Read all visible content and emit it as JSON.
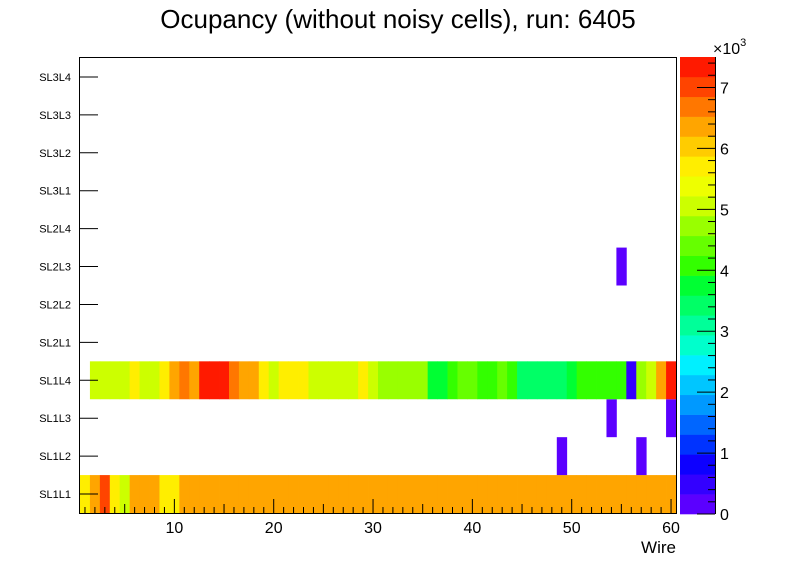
{
  "chart_data": {
    "type": "heatmap",
    "title": "Ocupancy (without noisy cells), run: 6405",
    "xlabel": "Wire",
    "ylabel": "",
    "xlim": [
      0.5,
      60.5
    ],
    "x_ticks": [
      10,
      20,
      30,
      40,
      50,
      60
    ],
    "y_categories": [
      "SL1L1",
      "SL1L2",
      "SL1L3",
      "SL1L4",
      "SL2L1",
      "SL2L2",
      "SL2L3",
      "SL2L4",
      "SL3L1",
      "SL3L2",
      "SL3L3",
      "SL3L4"
    ],
    "z_range": [
      0,
      7500
    ],
    "colorbar_label": "×10",
    "colorbar_exponent": "3",
    "colorbar_ticks": [
      {
        "value": 0,
        "label": "0"
      },
      {
        "value": 1000,
        "label": "1"
      },
      {
        "value": 2000,
        "label": "2"
      },
      {
        "value": 3000,
        "label": "3"
      },
      {
        "value": 4000,
        "label": "4"
      },
      {
        "value": 5000,
        "label": "5"
      },
      {
        "value": 6000,
        "label": "6"
      },
      {
        "value": 7000,
        "label": "7"
      }
    ],
    "palette": [
      "#5b00ff",
      "#3300ff",
      "#0d00ff",
      "#0033ff",
      "#0066ff",
      "#0099ff",
      "#00c6ff",
      "#00f0ff",
      "#00ffcc",
      "#00ff99",
      "#00ff66",
      "#00ff33",
      "#33ff00",
      "#66ff00",
      "#99ff00",
      "#ccff00",
      "#eeff00",
      "#ffee00",
      "#ffcc00",
      "#ffa500",
      "#ff7700",
      "#ff4400",
      "#ff1a00"
    ],
    "rows": [
      {
        "layer": "SL1L1",
        "values": [
          5700,
          6500,
          6900,
          5700,
          5100,
          6300,
          6300,
          6300,
          5600,
          5600,
          6500,
          6500,
          6500,
          6500,
          6500,
          6500,
          6500,
          6500,
          6500,
          6500,
          6500,
          6500,
          6500,
          6500,
          6500,
          6500,
          6500,
          6500,
          6500,
          6500,
          6500,
          6500,
          6500,
          6500,
          6500,
          6500,
          6500,
          6500,
          6500,
          6500,
          6500,
          6500,
          6500,
          6500,
          6500,
          6500,
          6500,
          6500,
          6500,
          6500,
          6500,
          6500,
          6500,
          6500,
          6500,
          6500,
          6500,
          6500,
          6500,
          6500
        ]
      },
      {
        "layer": "SL1L2",
        "values": [
          0,
          0,
          0,
          0,
          0,
          0,
          0,
          0,
          0,
          0,
          0,
          0,
          0,
          0,
          0,
          0,
          0,
          0,
          0,
          0,
          0,
          0,
          0,
          0,
          0,
          0,
          0,
          0,
          0,
          0,
          0,
          0,
          0,
          0,
          0,
          0,
          0,
          0,
          0,
          0,
          0,
          0,
          0,
          0,
          0,
          0,
          0,
          0,
          280,
          0,
          0,
          0,
          0,
          0,
          0,
          0,
          280,
          0,
          0,
          0
        ]
      },
      {
        "layer": "SL1L3",
        "values": [
          0,
          0,
          0,
          0,
          0,
          0,
          0,
          0,
          0,
          0,
          0,
          0,
          0,
          0,
          0,
          0,
          0,
          0,
          0,
          0,
          0,
          0,
          0,
          0,
          0,
          0,
          0,
          0,
          0,
          0,
          0,
          0,
          0,
          0,
          0,
          0,
          0,
          0,
          0,
          0,
          0,
          0,
          0,
          0,
          0,
          0,
          0,
          0,
          0,
          0,
          0,
          0,
          0,
          280,
          0,
          0,
          0,
          0,
          0,
          280
        ]
      },
      {
        "layer": "SL1L4",
        "values": [
          0,
          5100,
          5100,
          5100,
          5100,
          5600,
          5100,
          5100,
          5600,
          6300,
          6800,
          6500,
          7300,
          7300,
          7300,
          6800,
          6300,
          6300,
          5600,
          5100,
          5600,
          5600,
          5600,
          5100,
          4900,
          4900,
          4900,
          4900,
          5600,
          5100,
          4800,
          4800,
          4800,
          4600,
          4600,
          3800,
          3800,
          4100,
          4400,
          4400,
          4100,
          4100,
          4400,
          4100,
          3400,
          3400,
          3400,
          3400,
          3400,
          3600,
          4100,
          4100,
          4100,
          4100,
          4100,
          480,
          4700,
          5100,
          6500,
          7300
        ]
      },
      {
        "layer": "SL2L1",
        "values": []
      },
      {
        "layer": "SL2L2",
        "values": []
      },
      {
        "layer": "SL2L3",
        "values": [
          0,
          0,
          0,
          0,
          0,
          0,
          0,
          0,
          0,
          0,
          0,
          0,
          0,
          0,
          0,
          0,
          0,
          0,
          0,
          0,
          0,
          0,
          0,
          0,
          0,
          0,
          0,
          0,
          0,
          0,
          0,
          0,
          0,
          0,
          0,
          0,
          0,
          0,
          0,
          0,
          0,
          0,
          0,
          0,
          0,
          0,
          0,
          0,
          0,
          0,
          0,
          0,
          0,
          0,
          280,
          0,
          0,
          0,
          0,
          0
        ]
      },
      {
        "layer": "SL2L4",
        "values": []
      },
      {
        "layer": "SL3L1",
        "values": []
      },
      {
        "layer": "SL3L2",
        "values": []
      },
      {
        "layer": "SL3L3",
        "values": []
      },
      {
        "layer": "SL3L4",
        "values": []
      }
    ]
  }
}
